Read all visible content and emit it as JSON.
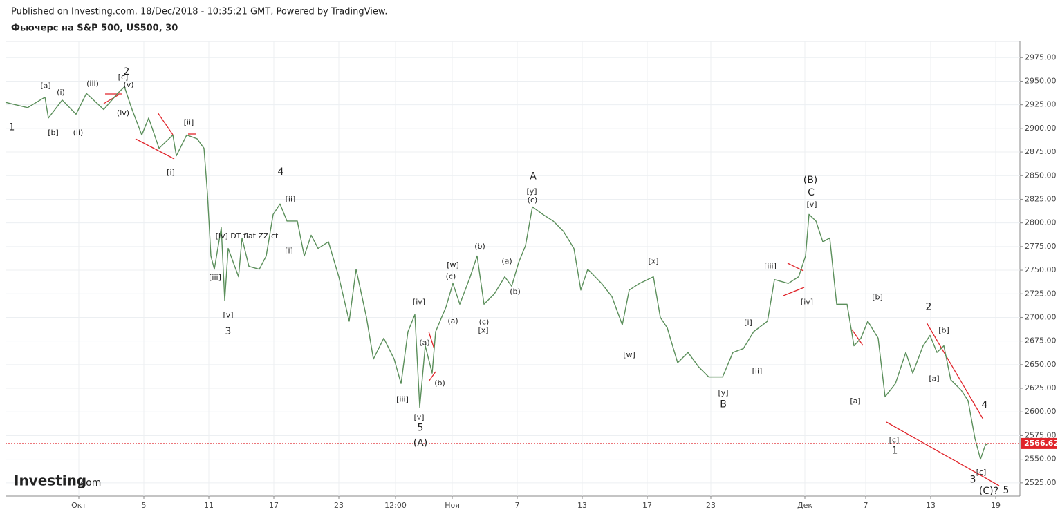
{
  "header": {
    "published": "Published on Investing.com, 18/Dec/2018 - 10:35:21 GMT, Powered by TradingView.",
    "instrument": "Фьючерс на S&P 500, US500, 30"
  },
  "logo": {
    "brand": "Investing",
    "suffix": ".com"
  },
  "chart_data": {
    "type": "line",
    "color": "#5b8f5b",
    "grid": true,
    "x": [
      0,
      8,
      14.25,
      15.5,
      20.5,
      25.5,
      29.25,
      35.5,
      40.5,
      43,
      45.5,
      49.25,
      51.75,
      55.5,
      60.5,
      61.75,
      65.5,
      69.25,
      71.75,
      73,
      74.25,
      75.5,
      78,
      79.25,
      80.5,
      84.25,
      85.5,
      88,
      91.75,
      94.25,
      96.75,
      99.25,
      101.75,
      105.5,
      108,
      110.5,
      113,
      116.75,
      120.5,
      124.25,
      126.75,
      130.5,
      133,
      136.75,
      140.5,
      143,
      145.5,
      148,
      149.75,
      151.75,
      154.25,
      155.5,
      159.25,
      161.75,
      164.25,
      168,
      170.5,
      173,
      176.75,
      180.5,
      183,
      185.5,
      188,
      190.5,
      194.25,
      198,
      201.75,
      205.5,
      208,
      210.5,
      215.5,
      219.25,
      223,
      225.5,
      229.25,
      234.25,
      236.75,
      239.25,
      243,
      246.75,
      250.5,
      254.25,
      259.25,
      263,
      266.75,
      270.5,
      275.5,
      278,
      283,
      286.75,
      289.25,
      290.5,
      293,
      295.5,
      298,
      300.5,
      304.25,
      306.75,
      309.25,
      311.75,
      315.5,
      318,
      321.75,
      325.5,
      328,
      331.75,
      334.25,
      336.75,
      339.25,
      341.75,
      345.5,
      348,
      350.5,
      352.5,
      354.25,
      355.5
    ],
    "values": [
      2927.5,
      2922,
      2933,
      2911,
      2930,
      2915,
      2937,
      2920,
      2937,
      2944,
      2922,
      2893,
      2911,
      2879,
      2893,
      2871,
      2893,
      2889,
      2879,
      2831,
      2765,
      2751,
      2795,
      2718,
      2773,
      2743,
      2784,
      2754,
      2751,
      2765,
      2809,
      2820,
      2802,
      2802,
      2765,
      2787,
      2773,
      2780,
      2743,
      2696,
      2751,
      2700,
      2656,
      2678,
      2656,
      2630,
      2685,
      2703,
      2605,
      2670,
      2641,
      2685,
      2711,
      2736,
      2714,
      2743,
      2765,
      2714,
      2725,
      2743,
      2733,
      2758,
      2776,
      2817,
      2809,
      2802,
      2791,
      2773,
      2729,
      2751,
      2736,
      2722,
      2692,
      2729,
      2736,
      2743,
      2700,
      2689,
      2652,
      2663,
      2648,
      2637,
      2637,
      2663,
      2667,
      2685,
      2696,
      2740,
      2736,
      2743,
      2765,
      2809,
      2802,
      2780,
      2784,
      2714,
      2714,
      2670,
      2678,
      2696,
      2678,
      2616,
      2630,
      2663,
      2641,
      2670,
      2681,
      2663,
      2670,
      2634,
      2623,
      2612,
      2572,
      2550,
      2565,
      2566.62
    ],
    "xlim": [
      0,
      365.5
    ],
    "xticks": [
      {
        "value": 26.5,
        "label": "Окт"
      },
      {
        "value": 50,
        "label": "5"
      },
      {
        "value": 73.5,
        "label": "11"
      },
      {
        "value": 97,
        "label": "17"
      },
      {
        "value": 120.5,
        "label": "23"
      },
      {
        "value": 141,
        "label": "12:00"
      },
      {
        "value": 161.5,
        "label": "Ноя"
      },
      {
        "value": 185,
        "label": "7"
      },
      {
        "value": 208.5,
        "label": "13"
      },
      {
        "value": 232,
        "label": "17"
      },
      {
        "value": 255,
        "label": "23"
      },
      {
        "value": 289,
        "label": "Дек"
      },
      {
        "value": 311,
        "label": "7"
      },
      {
        "value": 334.5,
        "label": "13"
      },
      {
        "value": 358,
        "label": "19"
      }
    ],
    "ylim": [
      2511,
      2992
    ],
    "yticks": [
      {
        "value": 2525,
        "label": "2525.00"
      },
      {
        "value": 2550,
        "label": "2550.00"
      },
      {
        "value": 2575,
        "label": "2575.00"
      },
      {
        "value": 2600,
        "label": "2600.00"
      },
      {
        "value": 2625,
        "label": "2625.00"
      },
      {
        "value": 2650,
        "label": "2650.00"
      },
      {
        "value": 2675,
        "label": "2675.00"
      },
      {
        "value": 2700,
        "label": "2700.00"
      },
      {
        "value": 2725,
        "label": "2725.00"
      },
      {
        "value": 2750,
        "label": "2750.00"
      },
      {
        "value": 2775,
        "label": "2775.00"
      },
      {
        "value": 2800,
        "label": "2800.00"
      },
      {
        "value": 2825,
        "label": "2825.00"
      },
      {
        "value": 2850,
        "label": "2850.00"
      },
      {
        "value": 2875,
        "label": "2875.00"
      },
      {
        "value": 2900,
        "label": "2900.00"
      },
      {
        "value": 2925,
        "label": "2925.00"
      },
      {
        "value": 2950,
        "label": "2950.00"
      },
      {
        "value": 2975,
        "label": "2975.00"
      }
    ],
    "last_price": {
      "value": 2566.62,
      "label": "2566.62",
      "color": "#e0252b"
    },
    "annotations": [
      {
        "text": "1",
        "x": 2.25,
        "y": 2901,
        "large": true
      },
      {
        "text": "[a]",
        "x": 14.5,
        "y": 2945
      },
      {
        "text": "(i)",
        "x": 20,
        "y": 2938
      },
      {
        "text": "(iii)",
        "x": 31.5,
        "y": 2947
      },
      {
        "text": "[c]",
        "x": 42.5,
        "y": 2954
      },
      {
        "text": "2",
        "x": 43.75,
        "y": 2960,
        "large": true
      },
      {
        "text": "(v)",
        "x": 44.5,
        "y": 2946
      },
      {
        "text": "(iv)",
        "x": 42.5,
        "y": 2916
      },
      {
        "text": "[b]",
        "x": 17.25,
        "y": 2895
      },
      {
        "text": "(ii)",
        "x": 26.25,
        "y": 2895
      },
      {
        "text": "[ii]",
        "x": 66.25,
        "y": 2906
      },
      {
        "text": "[i]",
        "x": 59.75,
        "y": 2853
      },
      {
        "text": "4",
        "x": 99.5,
        "y": 2854,
        "large": true
      },
      {
        "text": "[ii]",
        "x": 103,
        "y": 2825
      },
      {
        "text": "[iv] DT flat ZZ ct",
        "x": 87.25,
        "y": 2786
      },
      {
        "text": "[i]",
        "x": 102.5,
        "y": 2770
      },
      {
        "text": "[iii]",
        "x": 75.75,
        "y": 2742
      },
      {
        "text": "[v]",
        "x": 80.5,
        "y": 2702
      },
      {
        "text": "3",
        "x": 80.5,
        "y": 2685,
        "large": true
      },
      {
        "text": "A",
        "x": 190.75,
        "y": 2849,
        "large": true
      },
      {
        "text": "[y]",
        "x": 190.25,
        "y": 2833
      },
      {
        "text": "(c)",
        "x": 190.5,
        "y": 2824
      },
      {
        "text": "(b)",
        "x": 171.5,
        "y": 2775
      },
      {
        "text": "[w]",
        "x": 161.75,
        "y": 2755
      },
      {
        "text": "(a)",
        "x": 181.25,
        "y": 2759
      },
      {
        "text": "(c)",
        "x": 161,
        "y": 2743
      },
      {
        "text": "(b)",
        "x": 184.25,
        "y": 2727
      },
      {
        "text": "(a)",
        "x": 161.75,
        "y": 2696
      },
      {
        "text": "(c)",
        "x": 173,
        "y": 2695
      },
      {
        "text": "[x]",
        "x": 172.75,
        "y": 2686
      },
      {
        "text": "[iv]",
        "x": 149.5,
        "y": 2716
      },
      {
        "text": "(a)",
        "x": 151.5,
        "y": 2673
      },
      {
        "text": "(b)",
        "x": 157,
        "y": 2630
      },
      {
        "text": "[iii]",
        "x": 143.5,
        "y": 2613
      },
      {
        "text": "[v]",
        "x": 149.5,
        "y": 2594
      },
      {
        "text": "5",
        "x": 150,
        "y": 2583,
        "large": true
      },
      {
        "text": "(A)",
        "x": 150,
        "y": 2567,
        "large": true
      },
      {
        "text": "[x]",
        "x": 234.25,
        "y": 2759
      },
      {
        "text": "[w]",
        "x": 225.5,
        "y": 2660
      },
      {
        "text": "[y]",
        "x": 259.5,
        "y": 2620
      },
      {
        "text": "B",
        "x": 259.5,
        "y": 2608,
        "large": true
      },
      {
        "text": "[i]",
        "x": 268.5,
        "y": 2694
      },
      {
        "text": "[ii]",
        "x": 271.75,
        "y": 2643
      },
      {
        "text": "[iii]",
        "x": 276.5,
        "y": 2754
      },
      {
        "text": "[iv]",
        "x": 289.75,
        "y": 2716
      },
      {
        "text": "(B)",
        "x": 291,
        "y": 2845,
        "large": true
      },
      {
        "text": "C",
        "x": 291.25,
        "y": 2832,
        "large": true
      },
      {
        "text": "[v]",
        "x": 291.5,
        "y": 2819
      },
      {
        "text": "[b]",
        "x": 315.25,
        "y": 2721
      },
      {
        "text": "2",
        "x": 333.75,
        "y": 2711,
        "large": true
      },
      {
        "text": "[b]",
        "x": 339.25,
        "y": 2686
      },
      {
        "text": "[a]",
        "x": 307.25,
        "y": 2611
      },
      {
        "text": "[a]",
        "x": 335.75,
        "y": 2635
      },
      {
        "text": "[c]",
        "x": 321.25,
        "y": 2570
      },
      {
        "text": "1",
        "x": 321.5,
        "y": 2559,
        "large": true
      },
      {
        "text": "4",
        "x": 354,
        "y": 2607,
        "large": true
      },
      {
        "text": "[c]",
        "x": 352.75,
        "y": 2536
      },
      {
        "text": "3",
        "x": 349.75,
        "y": 2528,
        "large": true
      },
      {
        "text": "(C)?",
        "x": 355.5,
        "y": 2516,
        "large": true
      },
      {
        "text": "5",
        "x": 361.75,
        "y": 2517,
        "large": true
      }
    ]
  }
}
